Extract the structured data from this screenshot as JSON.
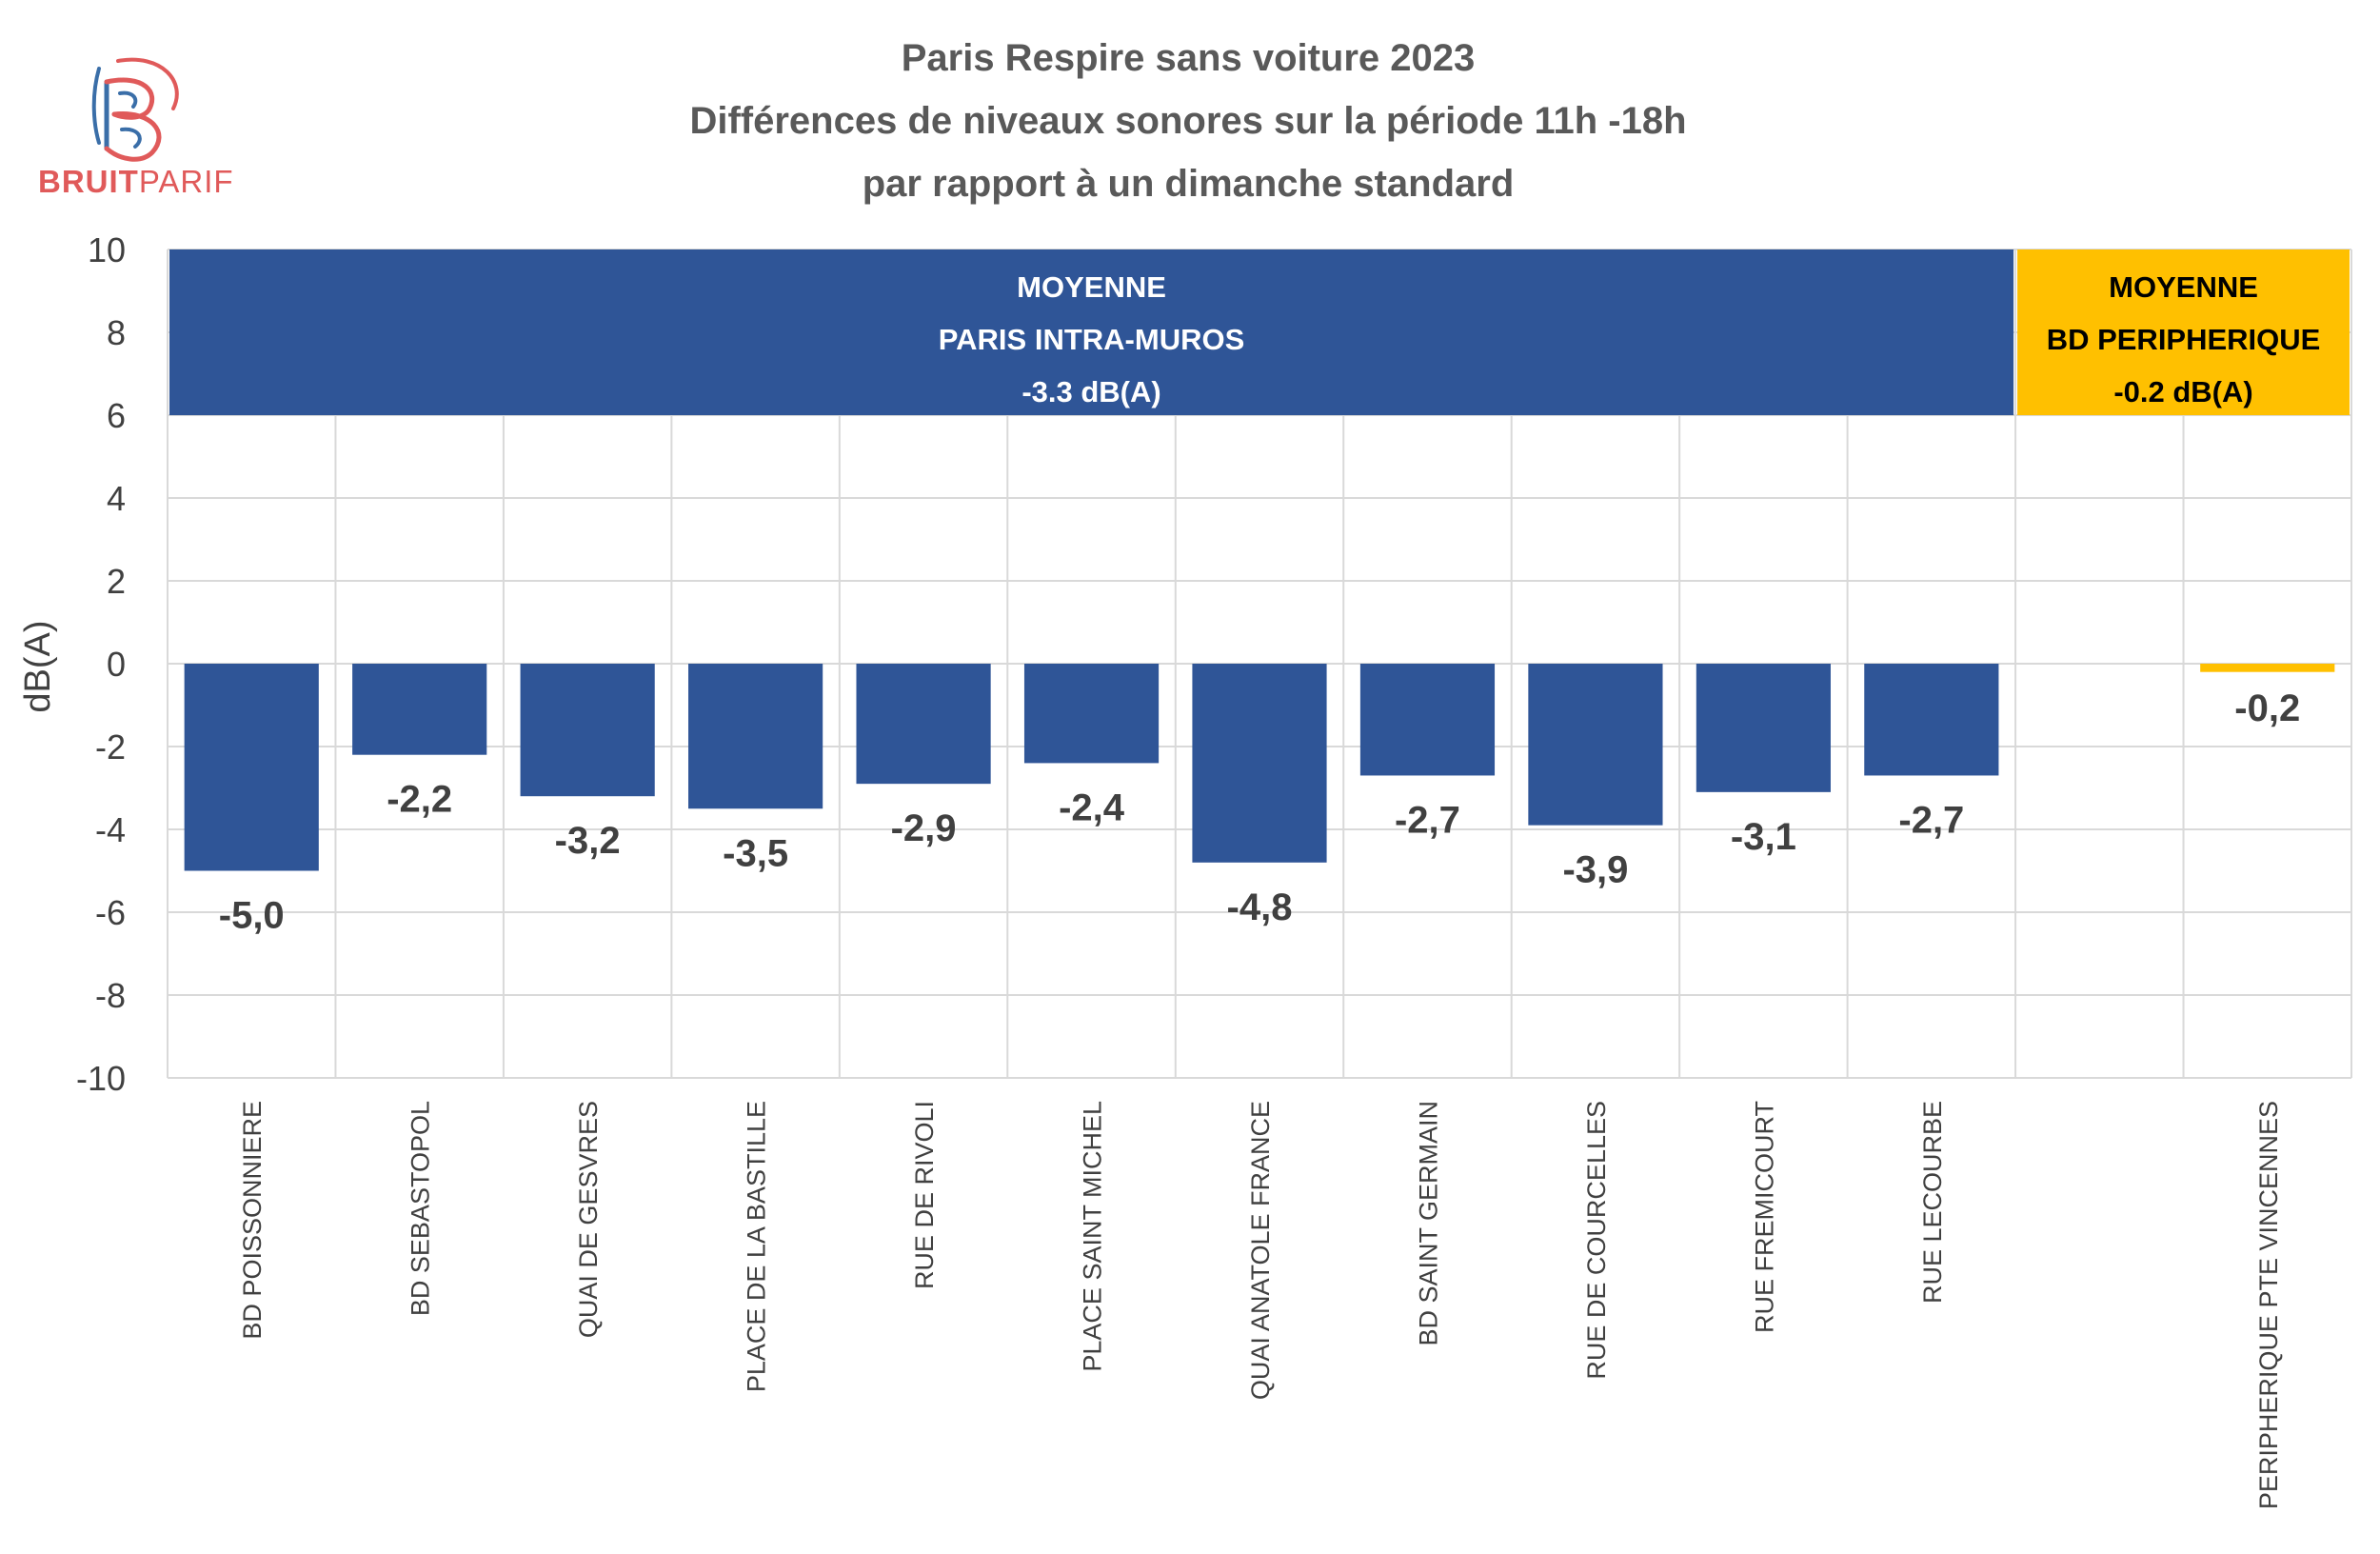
{
  "logo": {
    "name_bold": "BRUIT",
    "name_light": "PARIF",
    "colors": {
      "red": "#e05a5a",
      "blue": "#3a6ea8"
    }
  },
  "chart_data": {
    "type": "bar",
    "title_lines": [
      "Paris Respire sans voiture 2023",
      "Différences de niveaux sonores sur la période 11h  -18h",
      "par rapport à un dimanche standard"
    ],
    "ylabel": "dB(A)",
    "xlabel": "",
    "ylim": [
      -10,
      10
    ],
    "yticks": [
      10,
      8,
      6,
      4,
      2,
      0,
      -2,
      -4,
      -6,
      -8,
      -10
    ],
    "grid": true,
    "categories": [
      "BD POISSONNIERE",
      "BD SEBASTOPOL",
      "QUAI DE GESVRES",
      "PLACE DE LA BASTILLE",
      "RUE DE RIVOLI",
      "PLACE SAINT MICHEL",
      "QUAI ANATOLE FRANCE",
      "BD SAINT GERMAIN",
      "RUE DE COURCELLES",
      "RUE FREMICOURT",
      "RUE LECOURBE",
      "",
      "PERIPHERIQUE PTE VINCENNES"
    ],
    "values": [
      -5.0,
      -2.2,
      -3.2,
      -3.5,
      -2.9,
      -2.4,
      -4.8,
      -2.7,
      -3.9,
      -3.1,
      -2.7,
      null,
      -0.2
    ],
    "value_labels": [
      "-5,0",
      "-2,2",
      "-3,2",
      "-3,5",
      "-2,9",
      "-2,4",
      "-4,8",
      "-2,7",
      "-3,9",
      "-3,1",
      "-2,7",
      "",
      "-0,2"
    ],
    "bar_colors": [
      "#2f5597",
      "#2f5597",
      "#2f5597",
      "#2f5597",
      "#2f5597",
      "#2f5597",
      "#2f5597",
      "#2f5597",
      "#2f5597",
      "#2f5597",
      "#2f5597",
      "",
      "#ffc000"
    ],
    "annotations": [
      {
        "lines": [
          "MOYENNE",
          "PARIS INTRA-MUROS",
          "-3.3 dB(A)"
        ],
        "value": -3.3,
        "from_category": 0,
        "to_category": 10,
        "y_range": [
          6,
          10
        ],
        "fill": "#2f5597",
        "text_color": "#ffffff"
      },
      {
        "lines": [
          "MOYENNE",
          "BD PERIPHERIQUE",
          "-0.2 dB(A)"
        ],
        "value": -0.2,
        "from_category": 11,
        "to_category": 12,
        "y_range": [
          6,
          10
        ],
        "fill": "#ffc000",
        "text_color": "#000000"
      }
    ]
  }
}
